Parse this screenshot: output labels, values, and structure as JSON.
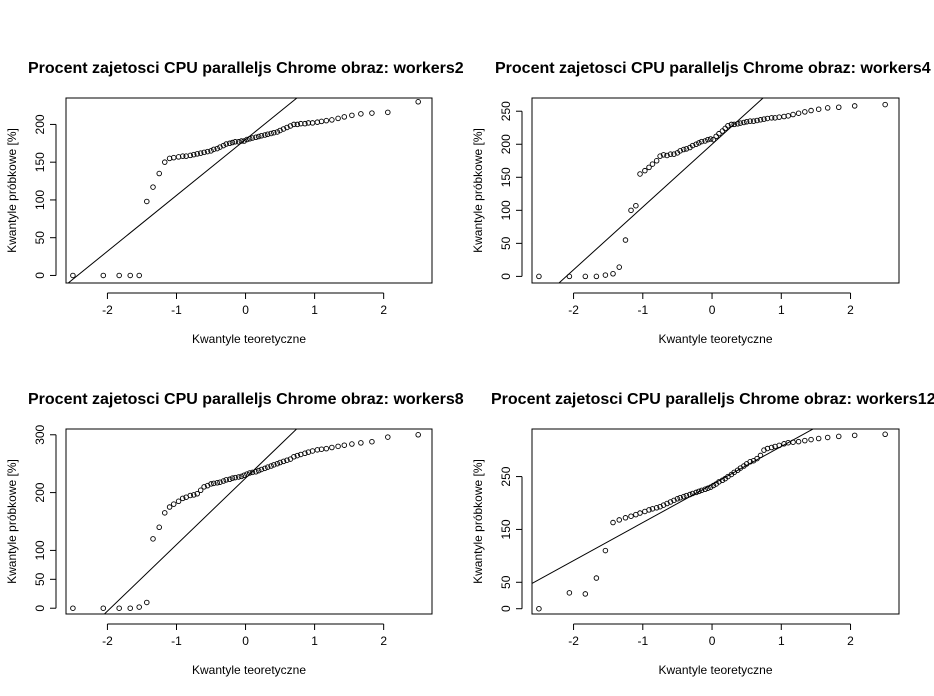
{
  "chart_data": [
    {
      "type": "scatter",
      "title": "Procent zajetosci CPU paralleljs Chrome obraz:  workers2",
      "xlabel": "Kwantyle teoretyczne",
      "ylabel": "Kwantyle próbkowe [%]",
      "xlim": [
        -2.6,
        2.7
      ],
      "ylim": [
        -10,
        235
      ],
      "xticks": [
        -2,
        -1,
        0,
        1,
        2
      ],
      "yticks": [
        0,
        50,
        100,
        150,
        200
      ],
      "qq_line": {
        "slope": 74,
        "intercept": 180
      },
      "series": [
        {
          "x": [
            -2.5,
            -2.06,
            -1.83,
            -1.67,
            -1.54,
            -1.43,
            -1.34,
            -1.25,
            -1.17,
            -1.1,
            -1.04,
            -0.97,
            -0.91,
            -0.86,
            -0.8,
            -0.75,
            -0.7,
            -0.65,
            -0.6,
            -0.55,
            -0.5,
            -0.46,
            -0.41,
            -0.37,
            -0.32,
            -0.28,
            -0.23,
            -0.19,
            -0.15,
            -0.1,
            -0.06,
            -0.02,
            0.02,
            0.06,
            0.1,
            0.15,
            0.19,
            0.23,
            0.28,
            0.32,
            0.37,
            0.41,
            0.46,
            0.5,
            0.55,
            0.6,
            0.65,
            0.7,
            0.75,
            0.8,
            0.86,
            0.91,
            0.97,
            1.04,
            1.1,
            1.17,
            1.25,
            1.34,
            1.43,
            1.54,
            1.67,
            1.83,
            2.06,
            2.5
          ],
          "y": [
            0,
            0,
            0,
            0,
            0,
            98,
            117,
            135,
            150,
            155,
            156,
            157,
            158,
            158,
            159,
            160,
            161,
            162,
            163,
            164,
            165,
            167,
            168,
            170,
            172,
            174,
            175,
            176,
            177,
            177,
            178,
            178,
            180,
            181,
            182,
            183,
            184,
            185,
            186,
            187,
            188,
            189,
            190,
            192,
            194,
            196,
            198,
            200,
            200,
            201,
            201,
            202,
            202,
            203,
            204,
            205,
            206,
            208,
            210,
            212,
            214,
            215,
            216,
            230
          ]
        }
      ]
    },
    {
      "type": "scatter",
      "title": "Procent zajetosci CPU paralleljs Chrome obraz:  workers4",
      "xlabel": "Kwantyle teoretyczne",
      "ylabel": "Kwantyle próbkowe [%]",
      "xlim": [
        -2.6,
        2.7
      ],
      "ylim": [
        -10,
        270
      ],
      "xticks": [
        -2,
        -1,
        0,
        1,
        2
      ],
      "yticks": [
        0,
        50,
        100,
        150,
        200,
        250
      ],
      "qq_line": {
        "slope": 95,
        "intercept": 200
      },
      "series": [
        {
          "x": [
            -2.5,
            -2.06,
            -1.83,
            -1.67,
            -1.54,
            -1.43,
            -1.34,
            -1.25,
            -1.17,
            -1.1,
            -1.04,
            -0.97,
            -0.91,
            -0.86,
            -0.8,
            -0.75,
            -0.7,
            -0.65,
            -0.6,
            -0.55,
            -0.5,
            -0.46,
            -0.41,
            -0.37,
            -0.32,
            -0.28,
            -0.23,
            -0.19,
            -0.15,
            -0.1,
            -0.06,
            -0.02,
            0.02,
            0.06,
            0.1,
            0.15,
            0.19,
            0.23,
            0.28,
            0.32,
            0.37,
            0.41,
            0.46,
            0.5,
            0.55,
            0.6,
            0.65,
            0.7,
            0.75,
            0.8,
            0.86,
            0.91,
            0.97,
            1.04,
            1.1,
            1.17,
            1.25,
            1.34,
            1.43,
            1.54,
            1.67,
            1.83,
            2.06,
            2.5
          ],
          "y": [
            0,
            0,
            0,
            0,
            2,
            4,
            14,
            55,
            100,
            107,
            155,
            160,
            165,
            170,
            175,
            182,
            184,
            183,
            185,
            185,
            187,
            190,
            192,
            193,
            195,
            198,
            200,
            202,
            204,
            205,
            207,
            208,
            207,
            212,
            216,
            220,
            224,
            228,
            230,
            230,
            231,
            232,
            233,
            234,
            235,
            235,
            236,
            237,
            238,
            239,
            240,
            240,
            241,
            242,
            243,
            245,
            247,
            249,
            251,
            253,
            255,
            256,
            258,
            260
          ]
        }
      ]
    },
    {
      "type": "scatter",
      "title": "Procent zajetosci CPU paralleljs Chrome obraz:  workers8",
      "xlabel": "Kwantyle teoretyczne",
      "ylabel": "Kwantyle próbkowe [%]",
      "xlim": [
        -2.6,
        2.7
      ],
      "ylim": [
        -10,
        310
      ],
      "xticks": [
        -2,
        -1,
        0,
        1,
        2
      ],
      "yticks": [
        0,
        50,
        100,
        200,
        300
      ],
      "qq_line": {
        "slope": 115,
        "intercept": 225
      },
      "series": [
        {
          "x": [
            -2.5,
            -2.06,
            -1.83,
            -1.67,
            -1.54,
            -1.43,
            -1.34,
            -1.25,
            -1.17,
            -1.1,
            -1.04,
            -0.97,
            -0.91,
            -0.86,
            -0.8,
            -0.75,
            -0.7,
            -0.65,
            -0.6,
            -0.55,
            -0.5,
            -0.46,
            -0.41,
            -0.37,
            -0.32,
            -0.28,
            -0.23,
            -0.19,
            -0.15,
            -0.1,
            -0.06,
            -0.02,
            0.02,
            0.06,
            0.1,
            0.15,
            0.19,
            0.23,
            0.28,
            0.32,
            0.37,
            0.41,
            0.46,
            0.5,
            0.55,
            0.6,
            0.65,
            0.7,
            0.75,
            0.8,
            0.86,
            0.91,
            0.97,
            1.04,
            1.1,
            1.17,
            1.25,
            1.34,
            1.43,
            1.54,
            1.67,
            1.83,
            2.06,
            2.5
          ],
          "y": [
            0,
            0,
            0,
            0,
            2,
            10,
            120,
            140,
            165,
            175,
            180,
            185,
            190,
            192,
            195,
            196,
            198,
            204,
            210,
            212,
            215,
            216,
            217,
            218,
            220,
            222,
            223,
            225,
            226,
            227,
            228,
            230,
            232,
            234,
            235,
            236,
            238,
            240,
            242,
            244,
            246,
            248,
            250,
            252,
            254,
            256,
            258,
            262,
            264,
            266,
            268,
            270,
            272,
            274,
            275,
            276,
            278,
            280,
            282,
            284,
            286,
            288,
            296,
            300
          ]
        }
      ]
    },
    {
      "type": "scatter",
      "title": "Procent zajetosci CPU paralleljs Chrome obraz:  workers12",
      "xlabel": "Kwantyle teoretyczne",
      "ylabel": "Kwantyle próbkowe [%]",
      "xlim": [
        -2.6,
        2.7
      ],
      "ylim": [
        -10,
        340
      ],
      "xticks": [
        -2,
        -1,
        0,
        1,
        2
      ],
      "yticks": [
        0,
        50,
        150,
        250
      ],
      "qq_line": {
        "slope": 72,
        "intercept": 235
      },
      "series": [
        {
          "x": [
            -2.5,
            -2.06,
            -1.83,
            -1.67,
            -1.54,
            -1.43,
            -1.34,
            -1.25,
            -1.17,
            -1.1,
            -1.04,
            -0.97,
            -0.91,
            -0.86,
            -0.8,
            -0.75,
            -0.7,
            -0.65,
            -0.6,
            -0.55,
            -0.5,
            -0.46,
            -0.41,
            -0.37,
            -0.32,
            -0.28,
            -0.23,
            -0.19,
            -0.15,
            -0.1,
            -0.06,
            -0.02,
            0.02,
            0.06,
            0.1,
            0.15,
            0.19,
            0.23,
            0.28,
            0.32,
            0.37,
            0.41,
            0.46,
            0.5,
            0.55,
            0.6,
            0.65,
            0.7,
            0.75,
            0.8,
            0.86,
            0.91,
            0.97,
            1.04,
            1.1,
            1.17,
            1.25,
            1.34,
            1.43,
            1.54,
            1.67,
            1.83,
            2.06,
            2.5
          ],
          "y": [
            0,
            30,
            28,
            58,
            110,
            163,
            168,
            172,
            175,
            178,
            181,
            184,
            187,
            189,
            191,
            193,
            196,
            199,
            202,
            205,
            208,
            210,
            212,
            214,
            216,
            218,
            220,
            222,
            224,
            226,
            228,
            230,
            233,
            236,
            240,
            243,
            246,
            250,
            254,
            258,
            262,
            266,
            270,
            274,
            278,
            280,
            284,
            290,
            300,
            303,
            305,
            307,
            309,
            312,
            314,
            315,
            316,
            318,
            320,
            322,
            324,
            326,
            328,
            330
          ]
        }
      ]
    }
  ]
}
